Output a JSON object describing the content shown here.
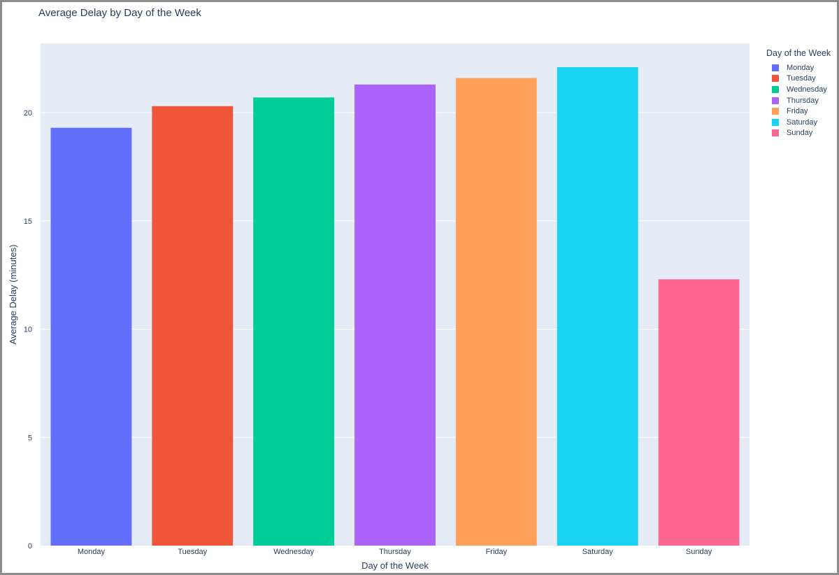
{
  "chart_data": {
    "type": "bar",
    "title": "Average Delay by Day of the Week",
    "xlabel": "Day of the Week",
    "ylabel": "Average Delay (minutes)",
    "categories": [
      "Monday",
      "Tuesday",
      "Wednesday",
      "Thursday",
      "Friday",
      "Saturday",
      "Sunday"
    ],
    "values": [
      19.3,
      20.3,
      20.7,
      21.3,
      21.6,
      22.1,
      12.3
    ],
    "colors": [
      "#636efa",
      "#ef553b",
      "#00cc96",
      "#ab63fa",
      "#ffa15a",
      "#19d3f3",
      "#ff6692"
    ],
    "ylim": [
      0,
      23.2
    ],
    "yticks": [
      0,
      5,
      10,
      15,
      20
    ],
    "grid": true,
    "legend_title": "Day of the Week",
    "legend_position": "right"
  }
}
